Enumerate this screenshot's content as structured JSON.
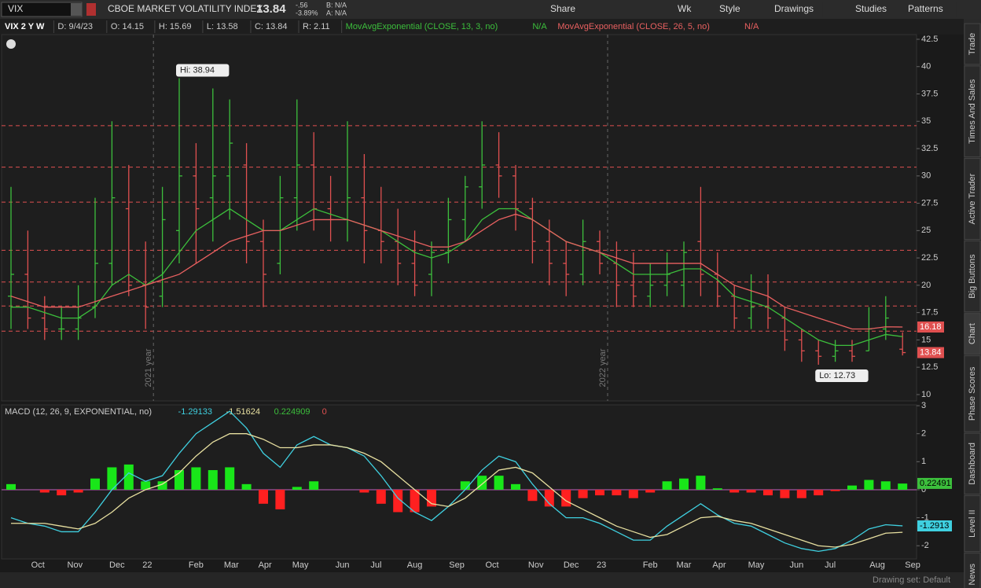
{
  "toolbar": {
    "symbol": "VIX",
    "description": "CBOE MARKET VOLATILITY INDEX",
    "last": "13.84",
    "change": "-.56",
    "change_pct": "-3.89%",
    "bid": "B: N/A",
    "ask": "A: N/A",
    "buttons": [
      "Share",
      "Wk",
      "Style",
      "Drawings",
      "Studies",
      "Patterns"
    ]
  },
  "header": [
    "VIX 2 Y W",
    "D: 9/4/23",
    "O: 14.15",
    "H: 15.69",
    "L: 13.58",
    "C: 13.84",
    "R: 2.11"
  ],
  "studies": [
    {
      "label": "MovAvgExponential (CLOSE, 13, 3, no)",
      "value": "N/A",
      "color": "#3cbf3c"
    },
    {
      "label": "MovAvgExponential (CLOSE, 26, 5, no)",
      "value": "N/A",
      "color": "#e86060"
    }
  ],
  "macd_header": {
    "label": "MACD (12, 26, 9, EXPONENTIAL, no)",
    "values": [
      {
        "text": "-1.29133",
        "color": "#3fd0e0"
      },
      {
        "text": "-1.51624",
        "color": "#e8e0a0"
      },
      {
        "text": "0.224909",
        "color": "#3cbf3c"
      },
      {
        "text": "0",
        "color": "#e05050"
      }
    ]
  },
  "side_tabs": [
    "Trade",
    "Times And Sales",
    "Active Trader",
    "Big Buttons",
    "Chart",
    "Phase Scores",
    "Dashboard",
    "Level II",
    "Live News"
  ],
  "footer": "Drawing set: Default",
  "chart": {
    "type": "ohlc",
    "up_color": "#3cbf3c",
    "down_color": "#e05050",
    "ylim": [
      9.42,
      42.93
    ],
    "yticks": [
      10,
      12.5,
      15,
      17.5,
      20,
      22.5,
      25,
      27.5,
      30,
      32.5,
      35,
      37.5,
      40,
      42.5
    ],
    "bars": [
      [
        19,
        29,
        16,
        21
      ],
      [
        21,
        25,
        16,
        17
      ],
      [
        17,
        19,
        15,
        16
      ],
      [
        16,
        18,
        15,
        16
      ],
      [
        16,
        20,
        15,
        17
      ],
      [
        18,
        28,
        17,
        22
      ],
      [
        22,
        35,
        20,
        28
      ],
      [
        27,
        31,
        19,
        20
      ],
      [
        20,
        24,
        16,
        18
      ],
      [
        19,
        29,
        18,
        26
      ],
      [
        25,
        38.94,
        22,
        30
      ],
      [
        30,
        33,
        22,
        27
      ],
      [
        28,
        38,
        24,
        30
      ],
      [
        30,
        37,
        26,
        33
      ],
      [
        31,
        33,
        22,
        24
      ],
      [
        24,
        26,
        18,
        21
      ],
      [
        22,
        30,
        21,
        28
      ],
      [
        28,
        37,
        25,
        31
      ],
      [
        31,
        34,
        25,
        27
      ],
      [
        27,
        30,
        24,
        26
      ],
      [
        26,
        35,
        24,
        28
      ],
      [
        28,
        32,
        22,
        25
      ],
      [
        25,
        29,
        22,
        24
      ],
      [
        24,
        27,
        20,
        22
      ],
      [
        22,
        25,
        19,
        20
      ],
      [
        21,
        24,
        19,
        23
      ],
      [
        23,
        28,
        22,
        26
      ],
      [
        26,
        30,
        24,
        29
      ],
      [
        29,
        35,
        27,
        31
      ],
      [
        31,
        34,
        28,
        30
      ],
      [
        30,
        31,
        25,
        27
      ],
      [
        27,
        28,
        22,
        24
      ],
      [
        24,
        26,
        20,
        22
      ],
      [
        22,
        24,
        19,
        21
      ],
      [
        21,
        26,
        20,
        24
      ],
      [
        24,
        25,
        21,
        22
      ],
      [
        22,
        24,
        18,
        20
      ],
      [
        20,
        23,
        18,
        19
      ],
      [
        19,
        22,
        18,
        20
      ],
      [
        20,
        23,
        19,
        21
      ],
      [
        20,
        24,
        18,
        23
      ],
      [
        24,
        29,
        19,
        21
      ],
      [
        21,
        23,
        18,
        19
      ],
      [
        19,
        20,
        16,
        17
      ],
      [
        17,
        21,
        16,
        18
      ],
      [
        18,
        21,
        16,
        17
      ],
      [
        17,
        18,
        14,
        15
      ],
      [
        15,
        16,
        13,
        14
      ],
      [
        14,
        15,
        12.73,
        13.5
      ],
      [
        13.5,
        15,
        13,
        14
      ],
      [
        14,
        15,
        13,
        13.5
      ],
      [
        14,
        18,
        14,
        16
      ],
      [
        16,
        19,
        15,
        17
      ],
      [
        14.15,
        15.69,
        13.58,
        13.84
      ]
    ],
    "ema": [
      {
        "color": "#3cbf3c",
        "values": [
          18,
          18,
          17.5,
          17,
          17,
          18,
          20,
          21,
          20,
          21,
          23,
          25,
          26,
          27,
          26,
          25,
          25,
          26,
          27,
          26.5,
          26,
          25.5,
          25,
          24,
          23,
          22.5,
          23,
          24,
          26,
          27,
          27,
          26,
          25,
          24,
          23.5,
          23,
          22,
          21,
          21,
          21,
          21.5,
          21.5,
          20.5,
          19,
          18.5,
          18,
          17,
          16,
          15,
          14.5,
          14.5,
          15,
          15.5,
          15.3
        ]
      },
      {
        "color": "#e86060",
        "values": [
          19,
          18.5,
          18,
          18,
          18,
          18.5,
          19,
          19.5,
          20,
          20.5,
          21,
          22,
          23,
          24,
          24.5,
          25,
          25,
          25.5,
          26,
          26,
          26,
          25.5,
          25,
          24.5,
          24,
          23.5,
          23.5,
          24,
          25,
          26,
          26.5,
          26,
          25,
          24,
          23.5,
          23,
          22.5,
          22,
          22,
          22,
          22,
          22,
          21,
          20,
          19.5,
          19,
          18,
          17.5,
          17,
          16.5,
          16,
          16,
          16.2,
          16.18
        ]
      }
    ],
    "levels": [
      34.6,
      30.8,
      27.6,
      23.2,
      20.3,
      18.1,
      15.8
    ],
    "annotations": [
      {
        "label": "Hi: 38.94",
        "bar": 10,
        "value": 38.94
      },
      {
        "label": "Lo: 12.73",
        "bar": 48,
        "value": 12.73
      }
    ],
    "price_tags": [
      {
        "label": "16.18",
        "value": 16.18,
        "color": "#e05050"
      },
      {
        "label": "13.84",
        "value": 13.84,
        "color": "#e05050"
      }
    ],
    "year_lines": [
      {
        "label": "2021 year",
        "bar": 8
      },
      {
        "label": "2022 year",
        "bar": 35
      }
    ],
    "x_labels": [
      {
        "label": "Oct",
        "bar": 1.6
      },
      {
        "label": "Nov",
        "bar": 3.8
      },
      {
        "label": "Dec",
        "bar": 6.3
      },
      {
        "label": "22",
        "bar": 8.1
      },
      {
        "label": "Feb",
        "bar": 11
      },
      {
        "label": "Mar",
        "bar": 13.1
      },
      {
        "label": "Apr",
        "bar": 15.1
      },
      {
        "label": "May",
        "bar": 17.2
      },
      {
        "label": "Jun",
        "bar": 19.7
      },
      {
        "label": "Jul",
        "bar": 21.7
      },
      {
        "label": "Aug",
        "bar": 24
      },
      {
        "label": "Sep",
        "bar": 26.5
      },
      {
        "label": "Oct",
        "bar": 28.6
      },
      {
        "label": "Nov",
        "bar": 31.2
      },
      {
        "label": "Dec",
        "bar": 33.3
      },
      {
        "label": "23",
        "bar": 35.1
      },
      {
        "label": "Feb",
        "bar": 38
      },
      {
        "label": "Mar",
        "bar": 40
      },
      {
        "label": "Apr",
        "bar": 42.1
      },
      {
        "label": "May",
        "bar": 44.3
      },
      {
        "label": "Jun",
        "bar": 46.7
      },
      {
        "label": "Jul",
        "bar": 48.7
      },
      {
        "label": "Aug",
        "bar": 51.5
      },
      {
        "label": "Sep",
        "bar": 53.6
      }
    ]
  },
  "macd": {
    "type": "macd",
    "ylim": [
      -2.47,
      3.03
    ],
    "yticks": [
      -2,
      -1,
      0,
      1,
      2,
      3
    ],
    "pos_color": "#19e619",
    "neg_color": "#ff2020",
    "value": {
      "color": "#3fd0e0",
      "values": [
        -1,
        -1.2,
        -1.3,
        -1.5,
        -1.5,
        -0.8,
        0,
        0.6,
        0.3,
        0.5,
        1.3,
        2,
        2.4,
        2.8,
        2.2,
        1.3,
        0.8,
        1.6,
        1.9,
        1.6,
        1.5,
        1.2,
        0.5,
        -0.3,
        -0.8,
        -1.1,
        -0.6,
        0,
        0.7,
        1.2,
        1,
        0.2,
        -0.5,
        -1,
        -1,
        -1.2,
        -1.5,
        -1.8,
        -1.8,
        -1.3,
        -0.9,
        -0.5,
        -0.9,
        -1.2,
        -1.3,
        -1.6,
        -1.9,
        -2.1,
        -2.2,
        -2.1,
        -1.8,
        -1.4,
        -1.25,
        -1.29
      ]
    },
    "avg": {
      "color": "#e8e0a0",
      "values": [
        -1.2,
        -1.2,
        -1.2,
        -1.3,
        -1.4,
        -1.2,
        -0.8,
        -0.3,
        0,
        0.2,
        0.6,
        1.2,
        1.7,
        2,
        2,
        1.8,
        1.5,
        1.5,
        1.6,
        1.6,
        1.5,
        1.3,
        1,
        0.5,
        0,
        -0.5,
        -0.6,
        -0.3,
        0.2,
        0.7,
        0.8,
        0.6,
        0.1,
        -0.4,
        -0.7,
        -1,
        -1.3,
        -1.5,
        -1.7,
        -1.6,
        -1.3,
        -1,
        -0.95,
        -1.1,
        -1.2,
        -1.4,
        -1.6,
        -1.8,
        -2,
        -2.05,
        -1.95,
        -1.75,
        -1.55,
        -1.52
      ]
    },
    "diff": [
      0.2,
      0,
      -0.1,
      -0.2,
      -0.1,
      0.4,
      0.8,
      0.9,
      0.3,
      0.3,
      0.7,
      0.8,
      0.7,
      0.8,
      0.2,
      -0.5,
      -0.7,
      0.1,
      0.3,
      0,
      0,
      -0.1,
      -0.5,
      -0.8,
      -0.8,
      -0.6,
      0,
      0.3,
      0.5,
      0.5,
      0.2,
      -0.4,
      -0.6,
      -0.6,
      -0.3,
      -0.2,
      -0.2,
      -0.3,
      -0.1,
      0.3,
      0.4,
      0.5,
      0.05,
      -0.1,
      -0.1,
      -0.2,
      -0.3,
      -0.3,
      -0.2,
      -0.05,
      0.15,
      0.35,
      0.3,
      0.22
    ],
    "tags": [
      {
        "label": "0.22491",
        "value": 0.22491,
        "color": "#3cbf3c"
      },
      {
        "label": "-1.2913",
        "value": -1.2913,
        "color": "#3fd0e0"
      }
    ]
  }
}
